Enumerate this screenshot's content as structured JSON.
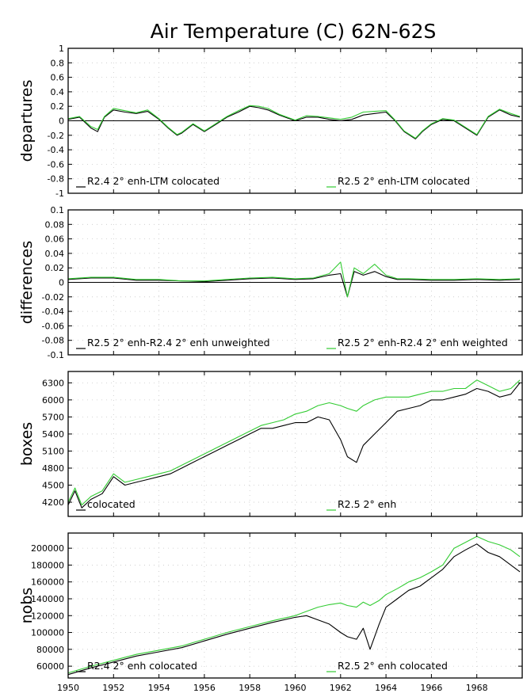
{
  "colors": {
    "black_series": "#000000",
    "green_series": "#33cc33"
  },
  "chart_data": {
    "title": "Air Temperature (C) 62N-62S",
    "x_ticks": [
      "1950",
      "1952",
      "1954",
      "1956",
      "1958",
      "1960",
      "1962",
      "1964",
      "1966",
      "1968"
    ],
    "xlim": [
      1950,
      1970
    ],
    "panels": [
      {
        "type": "line",
        "ylabel": "departures",
        "ylim": [
          -1,
          1
        ],
        "yticks": [
          "1",
          "0.8",
          "0.6",
          "0.4",
          "0.2",
          "0",
          "-0.2",
          "-0.4",
          "-0.6",
          "-0.8",
          "-1"
        ],
        "ytick_values": [
          1,
          0.8,
          0.6,
          0.4,
          0.2,
          0,
          -0.2,
          -0.4,
          -0.6,
          -0.8,
          -1
        ],
        "zero_line": true,
        "grid": true,
        "series": [
          {
            "name": "R2.4 2° enh-LTM colocated",
            "color": "black",
            "x": [
              1950,
              1950.5,
              1951,
              1951.3,
              1951.6,
              1952,
              1952.5,
              1953,
              1953.5,
              1954,
              1954.4,
              1954.8,
              1955,
              1955.5,
              1956,
              1956.5,
              1957,
              1957.5,
              1958,
              1958.4,
              1958.8,
              1959.3,
              1960,
              1960.5,
              1961,
              1961.5,
              1962,
              1962.5,
              1963,
              1963.5,
              1964,
              1964.4,
              1964.8,
              1965.3,
              1965.6,
              1966,
              1966.5,
              1967,
              1967.5,
              1968,
              1968.5,
              1969,
              1969.5,
              1969.9
            ],
            "y": [
              0.02,
              0.05,
              -0.1,
              -0.15,
              0.05,
              0.15,
              0.12,
              0.1,
              0.13,
              0.02,
              -0.1,
              -0.2,
              -0.17,
              -0.05,
              -0.15,
              -0.05,
              0.05,
              0.12,
              0.2,
              0.18,
              0.15,
              0.08,
              0.0,
              0.05,
              0.05,
              0.02,
              0.0,
              0.02,
              0.08,
              0.1,
              0.12,
              0.0,
              -0.15,
              -0.25,
              -0.15,
              -0.05,
              0.02,
              0.0,
              -0.1,
              -0.2,
              0.05,
              0.15,
              0.08,
              0.05
            ]
          },
          {
            "name": "R2.5 2° enh-LTM colocated",
            "color": "green",
            "x": [
              1950,
              1950.5,
              1951,
              1951.3,
              1951.6,
              1952,
              1952.5,
              1953,
              1953.5,
              1954,
              1954.4,
              1954.8,
              1955,
              1955.5,
              1956,
              1956.5,
              1957,
              1957.5,
              1958,
              1958.4,
              1958.8,
              1959.3,
              1960,
              1960.5,
              1961,
              1961.5,
              1962,
              1962.5,
              1963,
              1963.5,
              1964,
              1964.4,
              1964.8,
              1965.3,
              1965.6,
              1966,
              1966.5,
              1967,
              1967.5,
              1968,
              1968.5,
              1969,
              1969.5,
              1969.9
            ],
            "y": [
              0.03,
              0.06,
              -0.08,
              -0.12,
              0.06,
              0.17,
              0.14,
              0.11,
              0.15,
              0.03,
              -0.09,
              -0.19,
              -0.16,
              -0.04,
              -0.14,
              -0.04,
              0.06,
              0.14,
              0.21,
              0.2,
              0.17,
              0.09,
              0.01,
              0.07,
              0.06,
              0.04,
              0.02,
              0.05,
              0.12,
              0.13,
              0.14,
              0.01,
              -0.14,
              -0.24,
              -0.14,
              -0.04,
              0.03,
              0.01,
              -0.09,
              -0.19,
              0.06,
              0.16,
              0.1,
              0.06
            ]
          }
        ]
      },
      {
        "type": "line",
        "ylabel": "differences",
        "ylim": [
          -0.1,
          0.1
        ],
        "yticks": [
          "0.1",
          "0.08",
          "0.06",
          "0.04",
          "0.02",
          "0",
          "-0.02",
          "-0.04",
          "-0.06",
          "-0.08",
          "-0.1"
        ],
        "ytick_values": [
          0.1,
          0.08,
          0.06,
          0.04,
          0.02,
          0,
          -0.02,
          -0.04,
          -0.06,
          -0.08,
          -0.1
        ],
        "zero_line": true,
        "grid": true,
        "series": [
          {
            "name": "R2.5 2° enh-R2.4 2° enh unweighted",
            "color": "black",
            "x": [
              1950,
              1951,
              1952,
              1953,
              1954,
              1955,
              1956,
              1957,
              1958,
              1959,
              1960,
              1960.8,
              1961.5,
              1962,
              1962.3,
              1962.6,
              1963,
              1963.5,
              1964,
              1964.5,
              1965,
              1966,
              1967,
              1968,
              1969,
              1969.9
            ],
            "y": [
              0.004,
              0.006,
              0.006,
              0.003,
              0.003,
              0.002,
              0.001,
              0.003,
              0.005,
              0.006,
              0.004,
              0.005,
              0.01,
              0.012,
              -0.02,
              0.015,
              0.01,
              0.015,
              0.008,
              0.004,
              0.004,
              0.003,
              0.003,
              0.004,
              0.003,
              0.004
            ]
          },
          {
            "name": "R2.5 2° enh-R2.4 2° enh weighted",
            "color": "green",
            "x": [
              1950,
              1951,
              1952,
              1953,
              1954,
              1955,
              1956,
              1957,
              1958,
              1959,
              1960,
              1960.8,
              1961.5,
              1962,
              1962.3,
              1962.6,
              1963,
              1963.5,
              1964,
              1964.5,
              1965,
              1966,
              1967,
              1968,
              1969,
              1969.9
            ],
            "y": [
              0.005,
              0.007,
              0.007,
              0.004,
              0.004,
              0.002,
              0.002,
              0.004,
              0.006,
              0.007,
              0.005,
              0.006,
              0.012,
              0.028,
              -0.02,
              0.02,
              0.012,
              0.025,
              0.01,
              0.005,
              0.005,
              0.004,
              0.004,
              0.005,
              0.004,
              0.005
            ]
          }
        ]
      },
      {
        "type": "line",
        "ylabel": "boxes",
        "ylim": [
          3950,
          6500
        ],
        "yticks": [
          "6300",
          "6000",
          "5700",
          "5400",
          "5100",
          "4800",
          "4500",
          "4200"
        ],
        "ytick_values": [
          6300,
          6000,
          5700,
          5400,
          5100,
          4800,
          4500,
          4200
        ],
        "zero_line": false,
        "grid": true,
        "series": [
          {
            "name": "colocated",
            "color": "black",
            "x": [
              1950,
              1950.3,
              1950.6,
              1951,
              1951.5,
              1952,
              1952.5,
              1953,
              1953.5,
              1954,
              1954.5,
              1955,
              1955.5,
              1956,
              1956.5,
              1957,
              1957.5,
              1958,
              1958.5,
              1959,
              1959.5,
              1960,
              1960.5,
              1961,
              1961.5,
              1962,
              1962.3,
              1962.7,
              1963,
              1963.5,
              1964,
              1964.5,
              1965,
              1965.5,
              1966,
              1966.5,
              1967,
              1967.5,
              1968,
              1968.5,
              1969,
              1969.5,
              1969.9
            ],
            "y": [
              4150,
              4400,
              4100,
              4250,
              4350,
              4650,
              4500,
              4550,
              4600,
              4650,
              4700,
              4800,
              4900,
              5000,
              5100,
              5200,
              5300,
              5400,
              5500,
              5500,
              5550,
              5600,
              5600,
              5700,
              5650,
              5300,
              5000,
              4900,
              5200,
              5400,
              5600,
              5800,
              5850,
              5900,
              6000,
              6000,
              6050,
              6100,
              6200,
              6150,
              6050,
              6100,
              6300
            ]
          },
          {
            "name": "R2.5 2° enh",
            "color": "green",
            "x": [
              1950,
              1950.3,
              1950.6,
              1951,
              1951.5,
              1952,
              1952.5,
              1953,
              1953.5,
              1954,
              1954.5,
              1955,
              1955.5,
              1956,
              1956.5,
              1957,
              1957.5,
              1958,
              1958.5,
              1959,
              1959.5,
              1960,
              1960.5,
              1961,
              1961.5,
              1962,
              1962.3,
              1962.7,
              1963,
              1963.5,
              1964,
              1964.5,
              1965,
              1965.5,
              1966,
              1966.5,
              1967,
              1967.5,
              1968,
              1968.5,
              1969,
              1969.5,
              1969.9
            ],
            "y": [
              4200,
              4450,
              4150,
              4300,
              4400,
              4700,
              4550,
              4600,
              4650,
              4700,
              4750,
              4850,
              4950,
              5050,
              5150,
              5250,
              5350,
              5450,
              5550,
              5600,
              5650,
              5750,
              5800,
              5900,
              5950,
              5900,
              5850,
              5800,
              5900,
              6000,
              6050,
              6050,
              6050,
              6100,
              6150,
              6150,
              6200,
              6200,
              6350,
              6250,
              6150,
              6200,
              6350
            ]
          }
        ]
      },
      {
        "type": "line",
        "ylabel": "nobs",
        "ylim": [
          46000,
          218000
        ],
        "yticks": [
          "200000",
          "180000",
          "160000",
          "140000",
          "120000",
          "100000",
          "80000",
          "60000"
        ],
        "ytick_values": [
          200000,
          180000,
          160000,
          140000,
          120000,
          100000,
          80000,
          60000
        ],
        "zero_line": false,
        "grid": true,
        "series": [
          {
            "name": "R2.4 2° enh colocated",
            "color": "black",
            "x": [
              1950,
              1951,
              1952,
              1953,
              1954,
              1955,
              1956,
              1957,
              1958,
              1959,
              1960,
              1960.5,
              1961,
              1961.5,
              1962,
              1962.3,
              1962.7,
              1963,
              1963.3,
              1963.7,
              1964,
              1964.5,
              1965,
              1965.5,
              1966,
              1966.5,
              1967,
              1967.5,
              1968,
              1968.5,
              1969,
              1969.5,
              1969.9
            ],
            "y": [
              50000,
              58000,
              65000,
              72000,
              77000,
              82000,
              90000,
              98000,
              105000,
              112000,
              118000,
              120000,
              115000,
              110000,
              100000,
              95000,
              92000,
              105000,
              80000,
              110000,
              130000,
              140000,
              150000,
              155000,
              165000,
              175000,
              190000,
              198000,
              205000,
              195000,
              190000,
              180000,
              172000
            ]
          },
          {
            "name": "R2.5 2° enh colocated",
            "color": "green",
            "x": [
              1950,
              1951,
              1952,
              1953,
              1954,
              1955,
              1956,
              1957,
              1958,
              1959,
              1960,
              1960.5,
              1961,
              1961.5,
              1962,
              1962.3,
              1962.7,
              1963,
              1963.3,
              1963.7,
              1964,
              1964.5,
              1965,
              1965.5,
              1966,
              1966.5,
              1967,
              1967.5,
              1968,
              1968.5,
              1969,
              1969.5,
              1969.9
            ],
            "y": [
              52000,
              60000,
              67000,
              74000,
              79000,
              84000,
              92000,
              100000,
              107000,
              114000,
              120000,
              125000,
              130000,
              133000,
              135000,
              132000,
              130000,
              136000,
              132000,
              138000,
              145000,
              152000,
              160000,
              165000,
              172000,
              180000,
              200000,
              207000,
              214000,
              208000,
              204000,
              198000,
              190000
            ]
          }
        ]
      }
    ]
  }
}
